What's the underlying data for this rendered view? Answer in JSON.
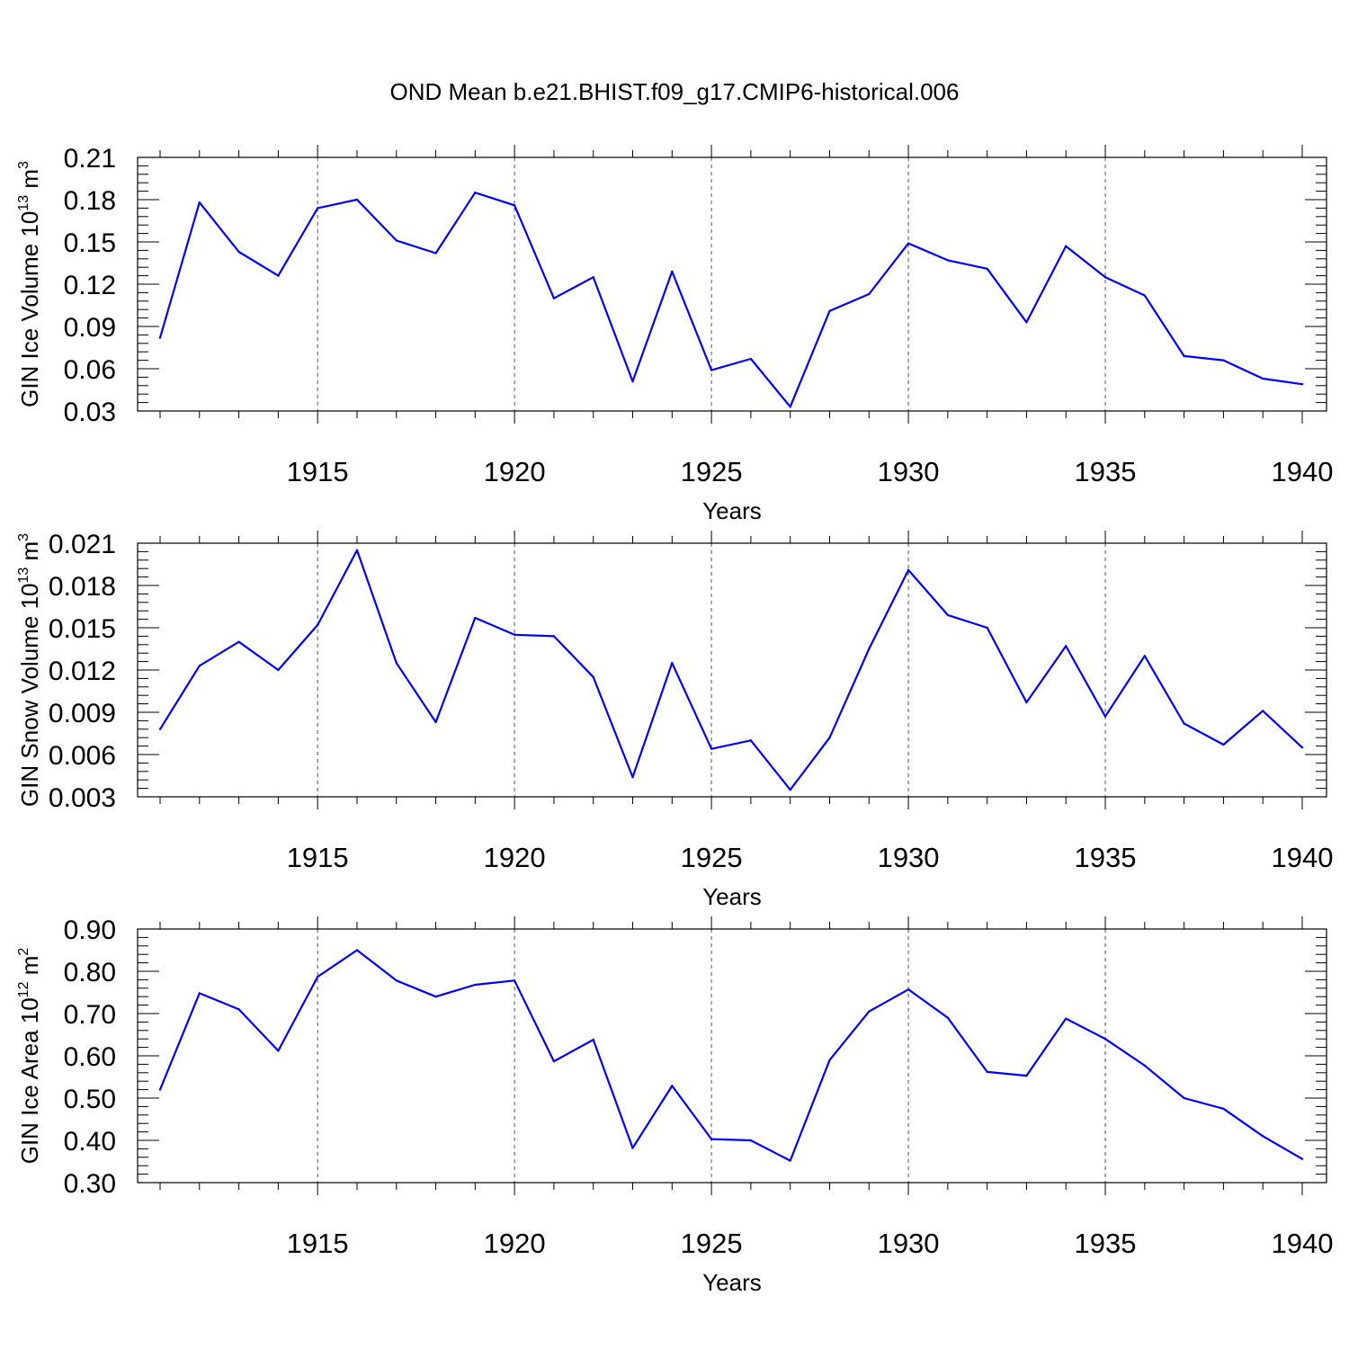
{
  "title": "OND Mean b.e21.BHIST.f09_g17.CMIP6-historical.006",
  "colors": {
    "series": "#0000ff",
    "axes": "#000000",
    "grid": "#555555"
  },
  "chart_data": [
    {
      "type": "line",
      "xlabel": "Years",
      "ylabel": {
        "text": "GIN Ice Volume 10",
        "sup1": "13",
        "mid": " m",
        "sup2": "3"
      },
      "xlim": [
        1911,
        1940
      ],
      "ylim": [
        0.03,
        0.21
      ],
      "xticks": [
        1915,
        1920,
        1925,
        1930,
        1935,
        1940
      ],
      "yticks": [
        "0.03",
        "0.06",
        "0.09",
        "0.12",
        "0.15",
        "0.18",
        "0.21"
      ],
      "grid": "vertical-dashed",
      "x": [
        1911,
        1912,
        1913,
        1914,
        1915,
        1916,
        1917,
        1918,
        1919,
        1920,
        1921,
        1922,
        1923,
        1924,
        1925,
        1926,
        1927,
        1928,
        1929,
        1930,
        1931,
        1932,
        1933,
        1934,
        1935,
        1936,
        1937,
        1938,
        1939,
        1940
      ],
      "values": [
        0.082,
        0.178,
        0.143,
        0.126,
        0.174,
        0.18,
        0.151,
        0.142,
        0.185,
        0.176,
        0.11,
        0.125,
        0.051,
        0.129,
        0.059,
        0.067,
        0.033,
        0.101,
        0.113,
        0.149,
        0.137,
        0.131,
        0.093,
        0.147,
        0.125,
        0.112,
        0.069,
        0.066,
        0.053,
        0.049
      ]
    },
    {
      "type": "line",
      "xlabel": "Years",
      "ylabel": {
        "text": "GIN Snow Volume 10",
        "sup1": "13",
        "mid": " m",
        "sup2": "3"
      },
      "xlim": [
        1911,
        1940
      ],
      "ylim": [
        0.003,
        0.021
      ],
      "xticks": [
        1915,
        1920,
        1925,
        1930,
        1935,
        1940
      ],
      "yticks": [
        "0.003",
        "0.006",
        "0.009",
        "0.012",
        "0.015",
        "0.018",
        "0.021"
      ],
      "grid": "vertical-dashed",
      "x": [
        1911,
        1912,
        1913,
        1914,
        1915,
        1916,
        1917,
        1918,
        1919,
        1920,
        1921,
        1922,
        1923,
        1924,
        1925,
        1926,
        1927,
        1928,
        1929,
        1930,
        1931,
        1932,
        1933,
        1934,
        1935,
        1936,
        1937,
        1938,
        1939,
        1940
      ],
      "values": [
        0.0078,
        0.0123,
        0.014,
        0.012,
        0.0152,
        0.0205,
        0.0125,
        0.0083,
        0.0157,
        0.0145,
        0.0144,
        0.0115,
        0.0044,
        0.0125,
        0.0064,
        0.007,
        0.0035,
        0.0072,
        0.0135,
        0.0191,
        0.0159,
        0.015,
        0.0097,
        0.0137,
        0.0087,
        0.013,
        0.0082,
        0.0067,
        0.0091,
        0.0065
      ]
    },
    {
      "type": "line",
      "xlabel": "Years",
      "ylabel": {
        "text": "GIN Ice Area 10",
        "sup1": "12",
        "mid": " m",
        "sup2": "2"
      },
      "xlim": [
        1911,
        1940
      ],
      "ylim": [
        0.3,
        0.9
      ],
      "xticks": [
        1915,
        1920,
        1925,
        1930,
        1935,
        1940
      ],
      "yticks": [
        "0.30",
        "0.40",
        "0.50",
        "0.60",
        "0.70",
        "0.80",
        "0.90"
      ],
      "grid": "vertical-dashed",
      "x": [
        1911,
        1912,
        1913,
        1914,
        1915,
        1916,
        1917,
        1918,
        1919,
        1920,
        1921,
        1922,
        1923,
        1924,
        1925,
        1926,
        1927,
        1928,
        1929,
        1930,
        1931,
        1932,
        1933,
        1934,
        1935,
        1936,
        1937,
        1938,
        1939,
        1940
      ],
      "values": [
        0.52,
        0.748,
        0.71,
        0.612,
        0.787,
        0.85,
        0.778,
        0.74,
        0.768,
        0.778,
        0.587,
        0.638,
        0.382,
        0.529,
        0.403,
        0.4,
        0.352,
        0.59,
        0.705,
        0.757,
        0.69,
        0.562,
        0.553,
        0.688,
        0.64,
        0.577,
        0.5,
        0.475,
        0.41,
        0.356
      ]
    }
  ]
}
